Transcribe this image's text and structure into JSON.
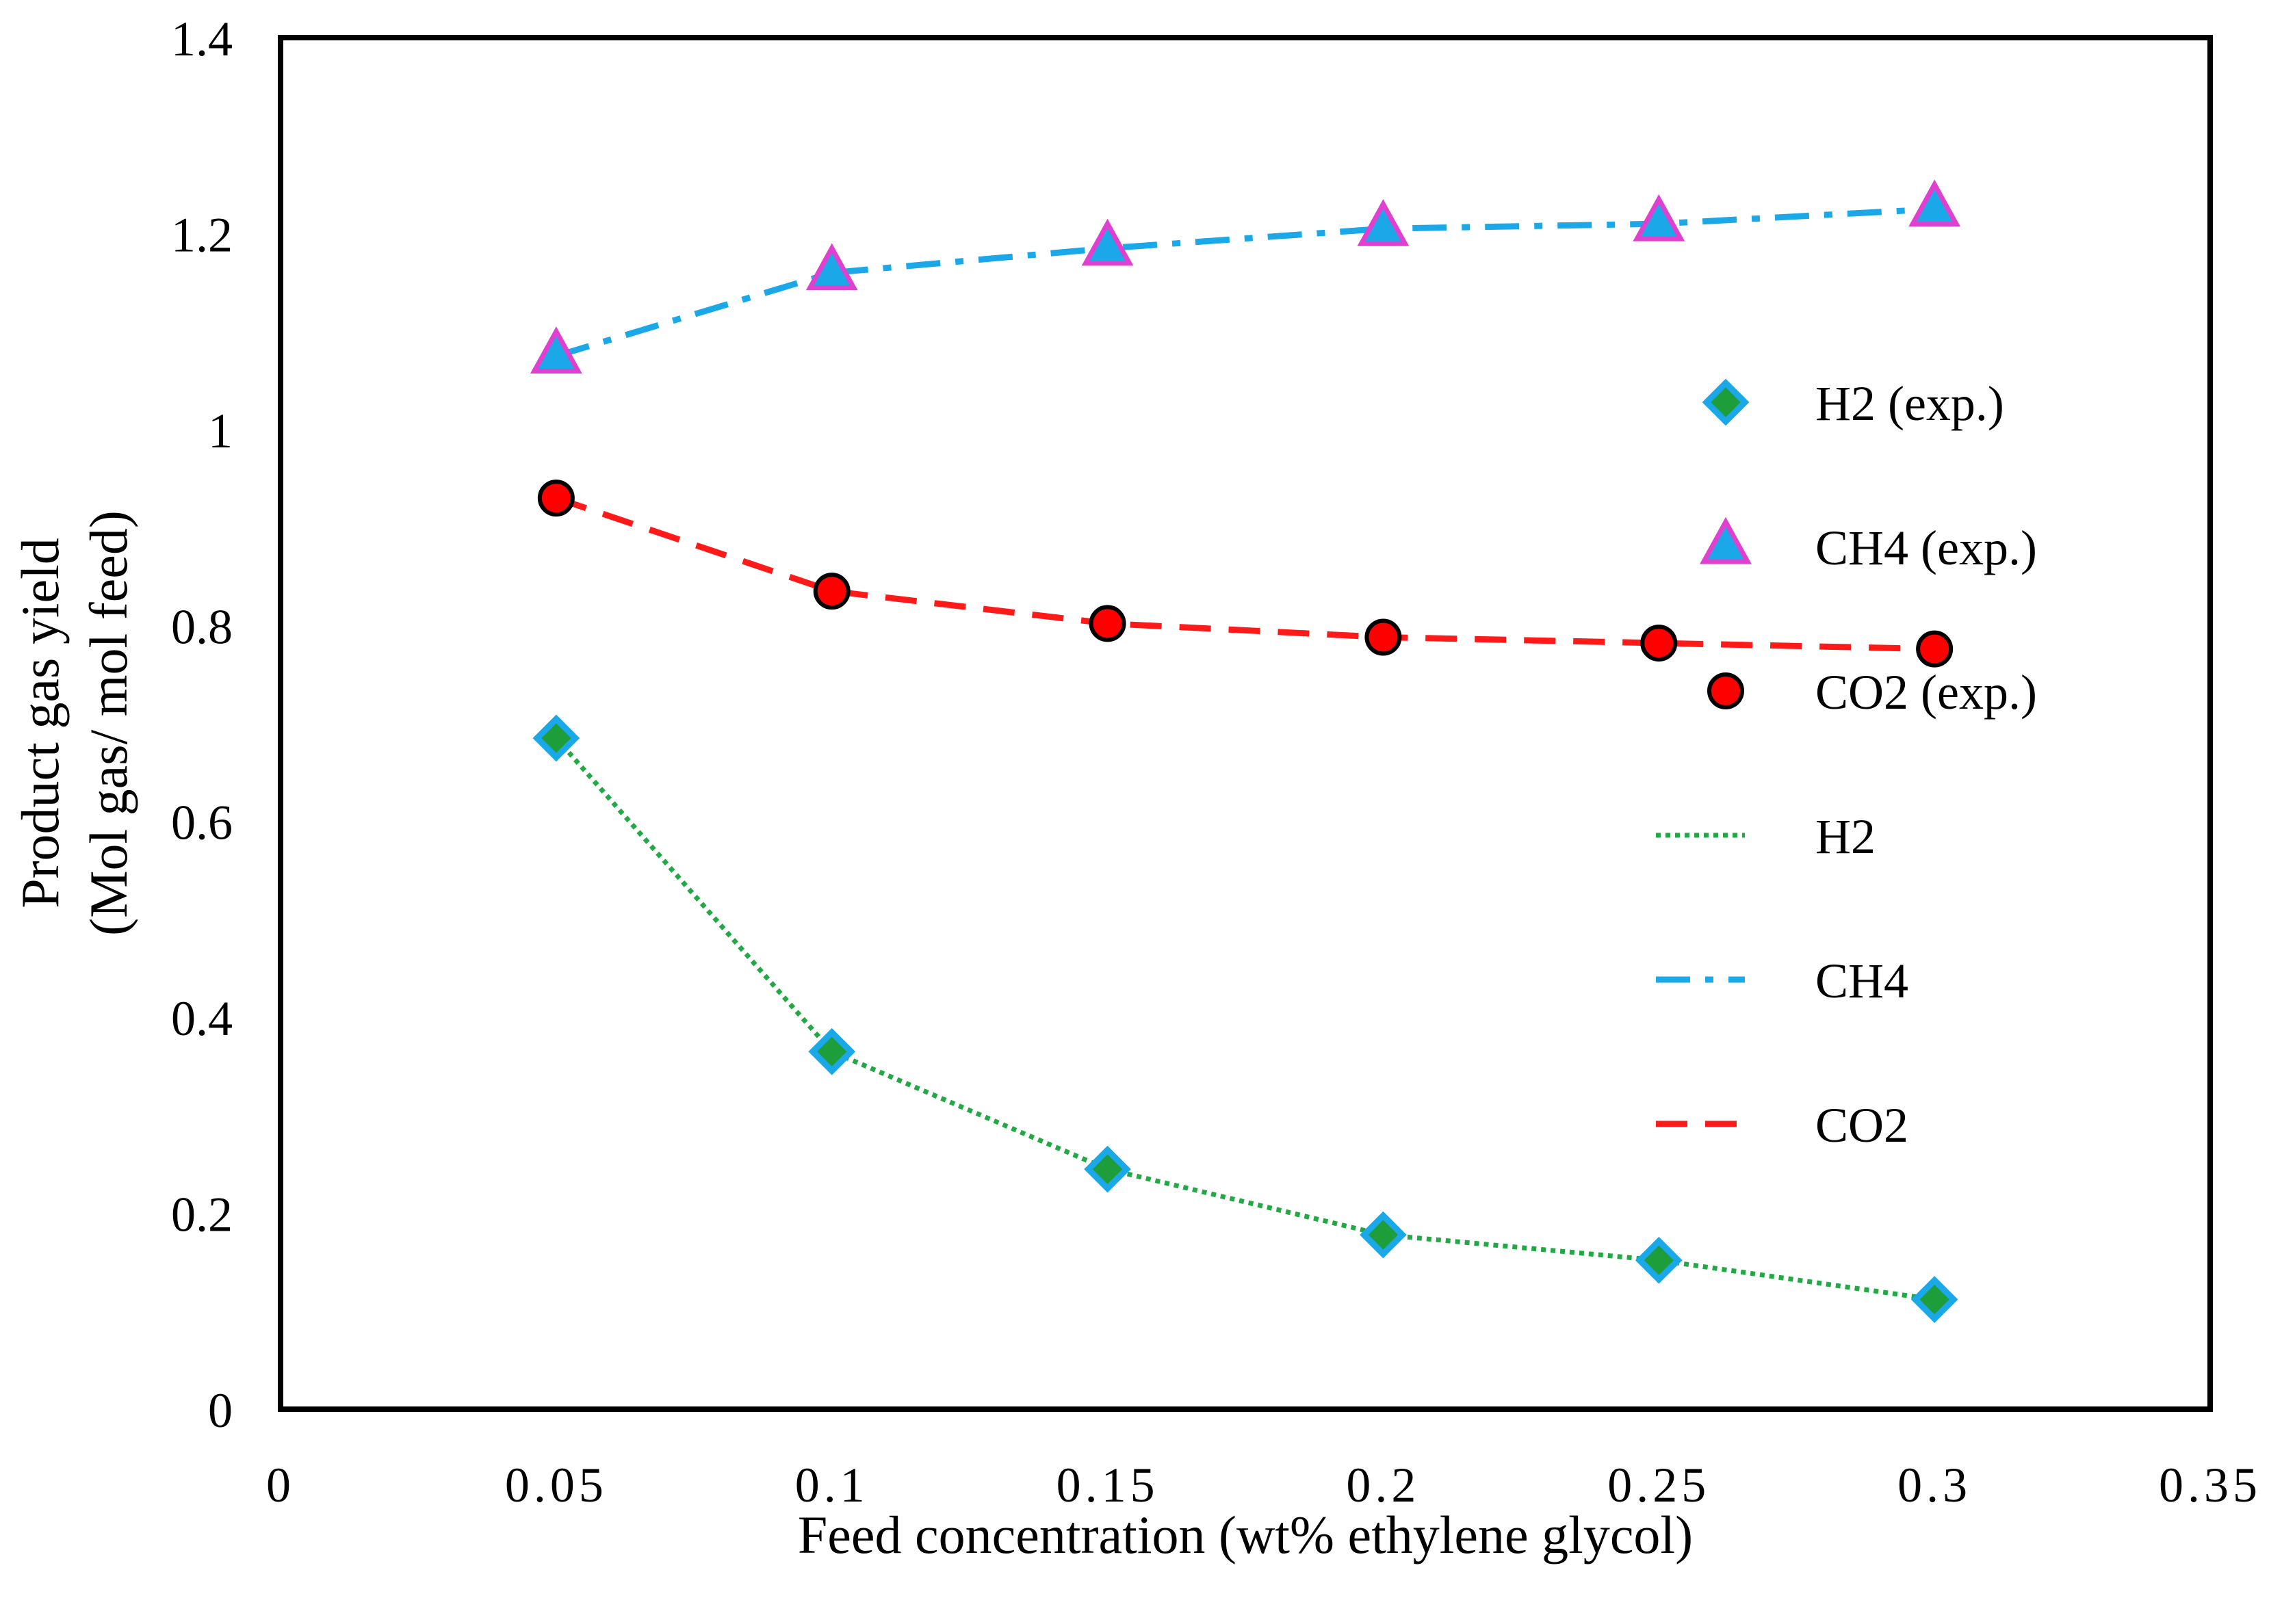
{
  "chart_data": {
    "type": "line",
    "xlabel": "Feed concentration (wt% ethylene glycol)",
    "ylabel_lines": [
      "Product gas yield",
      "(Mol gas/ mol feed)"
    ],
    "xlim": [
      0,
      0.35
    ],
    "ylim": [
      0,
      1.4
    ],
    "x_ticks": [
      "0",
      "0.05",
      "0.1",
      "0.15",
      "0.2",
      "0.25",
      "0.3",
      "0.35"
    ],
    "y_ticks": [
      "0",
      "0.2",
      "0.4",
      "0.6",
      "0.8",
      "1",
      "1.2",
      "1.4"
    ],
    "grid": false,
    "legend_placement": "right",
    "x": [
      0.05,
      0.1,
      0.15,
      0.2,
      0.25,
      0.3
    ],
    "series": [
      {
        "name": "H2 (exp.)",
        "kind": "marker",
        "marker": "diamond",
        "fill": "#1e9e3a",
        "stroke": "#1aa8e8",
        "values": [
          0.685,
          0.365,
          0.245,
          0.178,
          0.152,
          0.112
        ]
      },
      {
        "name": "CH4 (exp.)",
        "kind": "marker",
        "marker": "triangle",
        "fill": "#1aa8e8",
        "stroke": "#e040d0",
        "values": [
          1.075,
          1.16,
          1.185,
          1.205,
          1.21,
          1.225
        ]
      },
      {
        "name": "CO2 (exp.)",
        "kind": "marker",
        "marker": "circle",
        "fill": "#ff0000",
        "stroke": "#000000",
        "values": [
          0.93,
          0.835,
          0.802,
          0.788,
          0.782,
          0.776
        ]
      },
      {
        "name": "H2",
        "kind": "line",
        "dash": "dotted",
        "color": "#22a845",
        "values": [
          0.685,
          0.365,
          0.245,
          0.178,
          0.152,
          0.112
        ]
      },
      {
        "name": "CH4",
        "kind": "line",
        "dash": "dashdot",
        "color": "#1aa8e8",
        "values": [
          1.075,
          1.16,
          1.185,
          1.205,
          1.21,
          1.225
        ]
      },
      {
        "name": "CO2",
        "kind": "line",
        "dash": "dashed",
        "color": "#ff1a1a",
        "values": [
          0.93,
          0.835,
          0.802,
          0.788,
          0.782,
          0.776
        ]
      }
    ]
  }
}
